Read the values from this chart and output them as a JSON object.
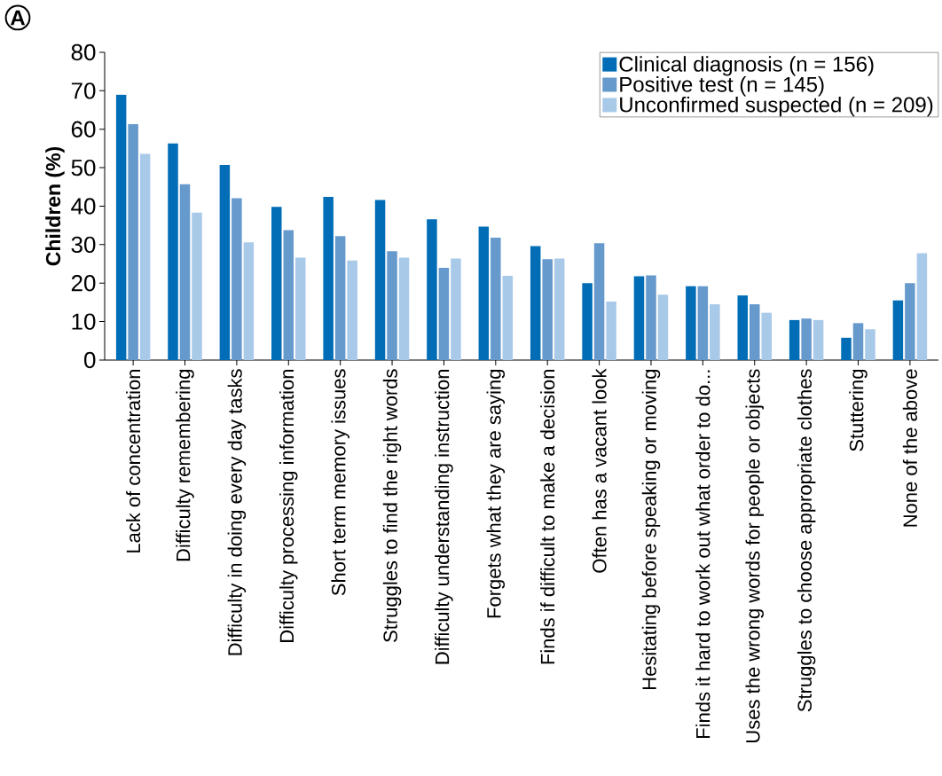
{
  "chart_data": {
    "type": "bar",
    "ylabel": "Children (%)",
    "annotations": [
      "A"
    ],
    "categories": [
      "Lack of concentration",
      "Difficulty remembering",
      "Difficulty in doing every day tasks",
      "Difficulty processing information",
      "Short term memory issues",
      "Struggles to find the right words",
      "Difficulty understanding instruction",
      "Forgets what they are saying",
      "Finds if difficult to make a decision",
      "Often has a vacant look",
      "Hesitating before speaking or moving",
      "Finds it hard to work out what order to do...",
      "Uses the wrong words for people or objects",
      "Struggles to choose appropriate clothes",
      "Stuttering",
      "None of the above"
    ],
    "series": [
      {
        "name": "Clinical diagnosis (n = 156)",
        "color": "#006db6",
        "values": [
          69,
          56.3,
          50.7,
          39.8,
          42.4,
          41.6,
          36.6,
          34.7,
          29.6,
          20.0,
          21.8,
          19.2,
          16.8,
          10.4,
          5.8,
          15.5
        ]
      },
      {
        "name": "Positive test (n = 145)",
        "color": "#6699cc",
        "values": [
          61.3,
          45.7,
          42.1,
          33.8,
          32.2,
          28.3,
          24.0,
          31.8,
          26.2,
          30.4,
          22.0,
          19.2,
          14.5,
          10.8,
          9.6,
          20.0
        ]
      },
      {
        "name": "Unconfirmed suspected (n = 209)",
        "color": "#a9c9e9",
        "values": [
          53.6,
          38.3,
          30.6,
          26.6,
          25.9,
          26.6,
          26.4,
          21.9,
          26.4,
          15.2,
          17.0,
          14.5,
          12.3,
          10.4,
          8.0,
          27.8
        ]
      }
    ],
    "ylim": [
      0,
      80
    ],
    "yticks": [
      0,
      10,
      20,
      30,
      40,
      50,
      60,
      70,
      80
    ],
    "grid": false,
    "legend": "top right"
  }
}
